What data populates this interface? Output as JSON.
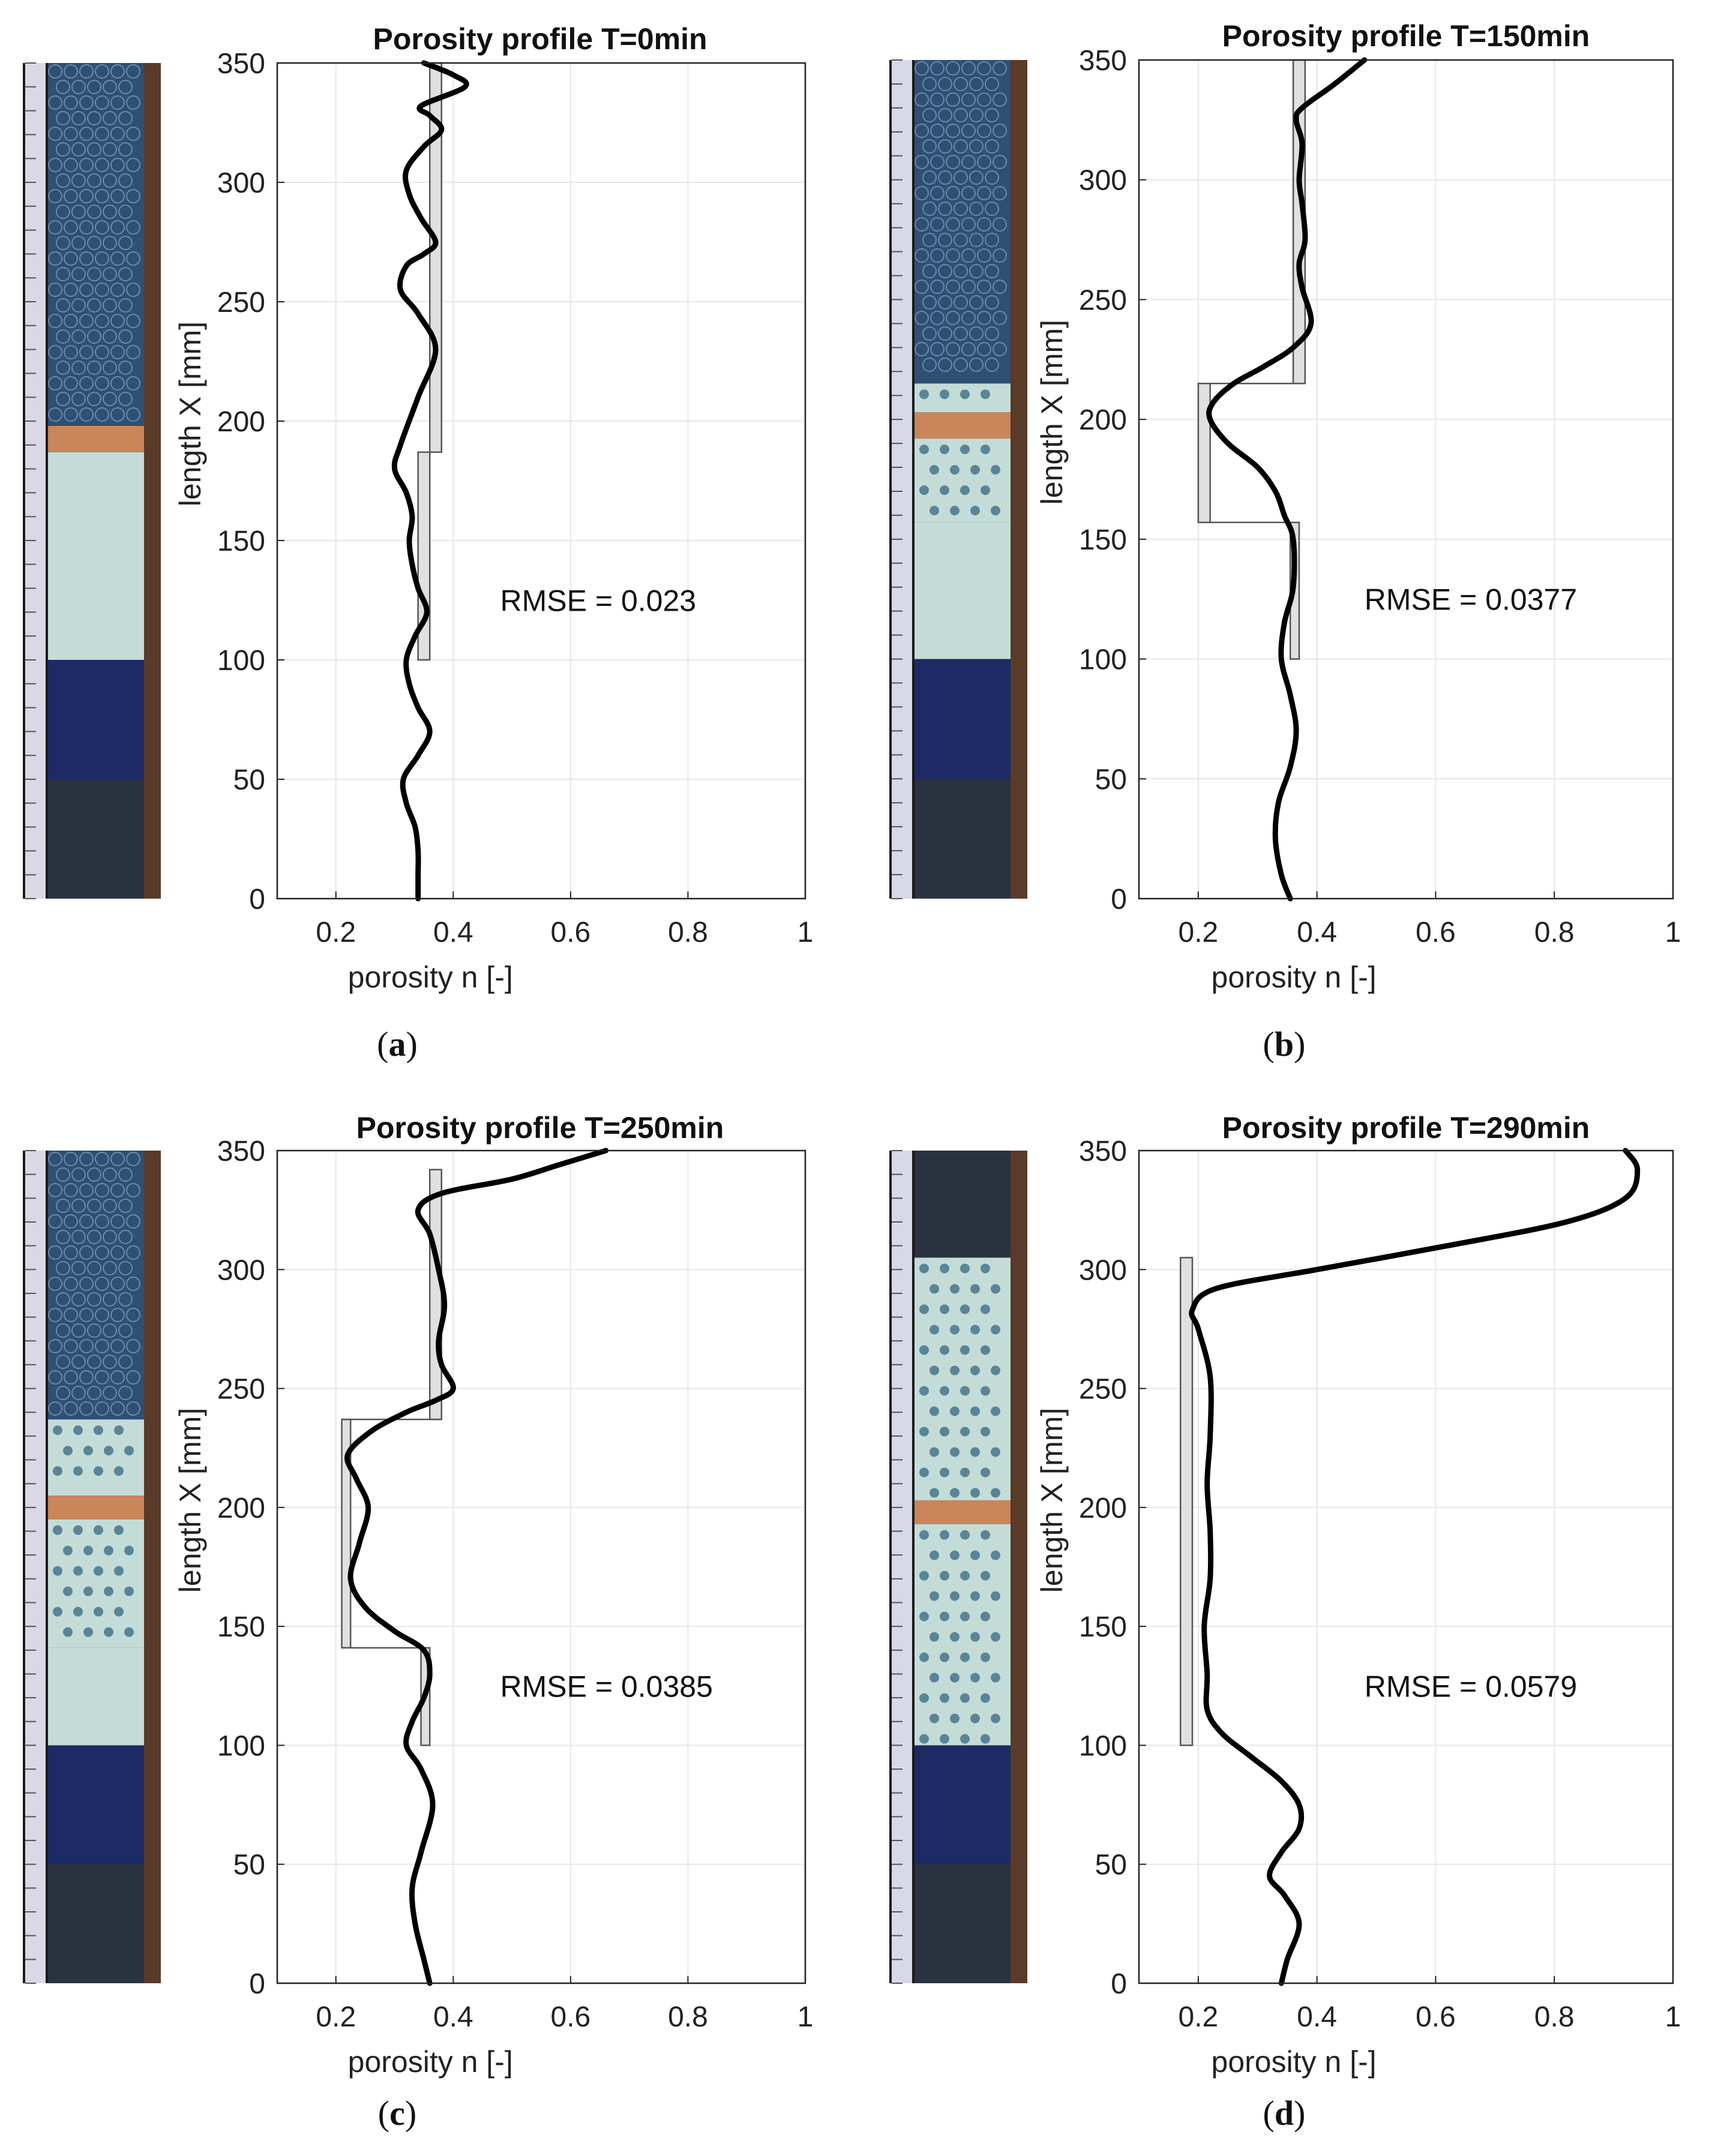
{
  "colors": {
    "curve": "#000000",
    "measured_fill": "#e0e0e0",
    "measured_stroke": "#555555",
    "grid": "#e6e6e6",
    "axes": "#222222",
    "copper": "#c8865a",
    "glass_beads": "#2f4f73",
    "white_layer": "#c4dcd8",
    "blue_layer": "#1c2a66",
    "dark_gravel": "#2a3240",
    "ruler": "#d8d8e6"
  },
  "chart_data": [
    {
      "type": "line",
      "panel": "a",
      "title": "Porosity profile T=0min",
      "xlabel": "porosity n [-]",
      "ylabel": "length X [mm]",
      "xlim": [
        0.1,
        1
      ],
      "ylim": [
        0,
        350
      ],
      "xticks": [
        "0.2",
        "0.4",
        "0.6",
        "0.8",
        "1"
      ],
      "yticks": [
        "0",
        "50",
        "100",
        "150",
        "200",
        "250",
        "300",
        "350"
      ],
      "annotation": "RMSE = 0.023",
      "label_letter": "a",
      "grid": true,
      "measured_bars": [
        {
          "y0": 100,
          "y1": 187,
          "x0": 0.34,
          "x1": 0.36
        },
        {
          "y0": 187,
          "y1": 350,
          "x0": 0.36,
          "x1": 0.38
        }
      ],
      "curve": {
        "x": [
          0.34,
          0.34,
          0.34,
          0.335,
          0.32,
          0.315,
          0.34,
          0.36,
          0.34,
          0.325,
          0.32,
          0.335,
          0.355,
          0.34,
          0.33,
          0.325,
          0.33,
          0.32,
          0.3,
          0.31,
          0.34,
          0.37,
          0.34,
          0.31,
          0.32,
          0.35,
          0.37,
          0.345,
          0.325,
          0.32,
          0.35,
          0.38,
          0.36,
          0.345,
          0.42,
          0.4,
          0.35
        ],
        "y": [
          0,
          10,
          20,
          30,
          40,
          50,
          60,
          70,
          80,
          90,
          100,
          110,
          120,
          130,
          140,
          150,
          160,
          170,
          180,
          190,
          210,
          230,
          245,
          255,
          265,
          270,
          275,
          285,
          295,
          305,
          315,
          322,
          328,
          332,
          340,
          345,
          350
        ]
      },
      "column_photo": {
        "layers": [
          {
            "name": "dark-gravel",
            "from": 0,
            "to": 50
          },
          {
            "name": "blue-beads",
            "from": 50,
            "to": 100
          },
          {
            "name": "white-filter",
            "from": 100,
            "to": 187
          },
          {
            "name": "copper-ring",
            "from": 187,
            "to": 198
          },
          {
            "name": "glass-beads",
            "from": 198,
            "to": 350
          }
        ]
      }
    },
    {
      "type": "line",
      "panel": "b",
      "title": "Porosity profile T=150min",
      "xlabel": "porosity n [-]",
      "ylabel": "length X [mm]",
      "xlim": [
        0.1,
        1
      ],
      "ylim": [
        0,
        350
      ],
      "xticks": [
        "0.2",
        "0.4",
        "0.6",
        "0.8",
        "1"
      ],
      "yticks": [
        "0",
        "50",
        "100",
        "150",
        "200",
        "250",
        "300",
        "350"
      ],
      "annotation": "RMSE = 0.0377",
      "label_letter": "b",
      "grid": true,
      "measured_bars": [
        {
          "y0": 100,
          "y1": 157,
          "x0": 0.355,
          "x1": 0.37
        },
        {
          "y0": 157,
          "y1": 215,
          "x0": 0.2,
          "x1": 0.22
        },
        {
          "y0": 215,
          "y1": 350,
          "x0": 0.36,
          "x1": 0.38
        }
      ],
      "curve": {
        "x": [
          0.355,
          0.34,
          0.33,
          0.335,
          0.355,
          0.365,
          0.355,
          0.34,
          0.345,
          0.36,
          0.36,
          0.345,
          0.33,
          0.3,
          0.25,
          0.22,
          0.225,
          0.26,
          0.31,
          0.36,
          0.39,
          0.375,
          0.37,
          0.38,
          0.375,
          0.37,
          0.375,
          0.365,
          0.375,
          0.43,
          0.48
        ],
        "y": [
          0,
          10,
          25,
          40,
          55,
          70,
          85,
          100,
          115,
          130,
          150,
          160,
          170,
          180,
          190,
          200,
          207,
          215,
          222,
          230,
          240,
          255,
          265,
          275,
          290,
          300,
          315,
          325,
          330,
          340,
          350
        ]
      },
      "column_photo": {
        "layers": [
          {
            "name": "dark-gravel",
            "from": 0,
            "to": 50
          },
          {
            "name": "blue-beads",
            "from": 50,
            "to": 100
          },
          {
            "name": "white-filter",
            "from": 100,
            "to": 157
          },
          {
            "name": "eroded-filter",
            "from": 157,
            "to": 192
          },
          {
            "name": "copper-ring",
            "from": 192,
            "to": 203
          },
          {
            "name": "eroded-filter",
            "from": 203,
            "to": 215
          },
          {
            "name": "glass-beads",
            "from": 215,
            "to": 350
          }
        ]
      }
    },
    {
      "type": "line",
      "panel": "c",
      "title": "Porosity profile T=250min",
      "xlabel": "porosity n [-]",
      "ylabel": "length X [mm]",
      "xlim": [
        0.1,
        1
      ],
      "ylim": [
        0,
        350
      ],
      "xticks": [
        "0.2",
        "0.4",
        "0.6",
        "0.8",
        "1"
      ],
      "yticks": [
        "0",
        "50",
        "100",
        "150",
        "200",
        "250",
        "300",
        "350"
      ],
      "annotation": "RMSE = 0.0385",
      "label_letter": "c",
      "grid": true,
      "measured_bars": [
        {
          "y0": 100,
          "y1": 141,
          "x0": 0.345,
          "x1": 0.36
        },
        {
          "y0": 141,
          "y1": 237,
          "x0": 0.21,
          "x1": 0.225
        },
        {
          "y0": 237,
          "y1": 342,
          "x0": 0.36,
          "x1": 0.38
        }
      ],
      "curve": {
        "x": [
          0.36,
          0.35,
          0.335,
          0.33,
          0.345,
          0.365,
          0.345,
          0.32,
          0.33,
          0.35,
          0.36,
          0.35,
          0.3,
          0.25,
          0.225,
          0.24,
          0.255,
          0.235,
          0.22,
          0.26,
          0.32,
          0.37,
          0.4,
          0.38,
          0.375,
          0.385,
          0.375,
          0.36,
          0.34,
          0.38,
          0.5,
          0.58,
          0.66
        ],
        "y": [
          0,
          10,
          25,
          40,
          55,
          75,
          90,
          100,
          110,
          120,
          130,
          140,
          148,
          158,
          170,
          185,
          200,
          212,
          222,
          232,
          240,
          245,
          250,
          260,
          270,
          285,
          300,
          315,
          325,
          332,
          338,
          344,
          350
        ]
      },
      "column_photo": {
        "layers": [
          {
            "name": "dark-gravel",
            "from": 0,
            "to": 50
          },
          {
            "name": "blue-beads",
            "from": 50,
            "to": 100
          },
          {
            "name": "white-filter",
            "from": 100,
            "to": 141
          },
          {
            "name": "eroded-filter",
            "from": 141,
            "to": 195
          },
          {
            "name": "copper-ring",
            "from": 195,
            "to": 205
          },
          {
            "name": "eroded-filter",
            "from": 205,
            "to": 237
          },
          {
            "name": "glass-beads",
            "from": 237,
            "to": 350
          }
        ]
      }
    },
    {
      "type": "line",
      "panel": "d",
      "title": "Porosity profile T=290min",
      "xlabel": "porosity n [-]",
      "ylabel": "length X [mm]",
      "xlim": [
        0.1,
        1
      ],
      "ylim": [
        0,
        350
      ],
      "xticks": [
        "0.2",
        "0.4",
        "0.6",
        "0.8",
        "1"
      ],
      "yticks": [
        "0",
        "50",
        "100",
        "150",
        "200",
        "250",
        "300",
        "350"
      ],
      "annotation": "RMSE = 0.0579",
      "label_letter": "d",
      "grid": true,
      "measured_bars": [
        {
          "y0": 100,
          "y1": 305,
          "x0": 0.17,
          "x1": 0.19
        }
      ],
      "curve": {
        "x": [
          0.34,
          0.35,
          0.37,
          0.345,
          0.32,
          0.34,
          0.37,
          0.37,
          0.34,
          0.29,
          0.24,
          0.215,
          0.215,
          0.21,
          0.22,
          0.22,
          0.215,
          0.22,
          0.22,
          0.2,
          0.19,
          0.23,
          0.4,
          0.62,
          0.82,
          0.92,
          0.94,
          0.92
        ],
        "y": [
          0,
          10,
          25,
          37,
          45,
          55,
          65,
          75,
          85,
          95,
          105,
          115,
          130,
          150,
          170,
          190,
          210,
          230,
          255,
          275,
          283,
          292,
          300,
          310,
          320,
          330,
          342,
          350
        ]
      },
      "column_photo": {
        "layers": [
          {
            "name": "dark-gravel",
            "from": 0,
            "to": 50
          },
          {
            "name": "blue-beads",
            "from": 50,
            "to": 100
          },
          {
            "name": "eroded-filter",
            "from": 100,
            "to": 193
          },
          {
            "name": "copper-ring",
            "from": 193,
            "to": 203
          },
          {
            "name": "eroded-filter",
            "from": 203,
            "to": 305
          },
          {
            "name": "open-pipe",
            "from": 305,
            "to": 350
          }
        ]
      }
    }
  ]
}
